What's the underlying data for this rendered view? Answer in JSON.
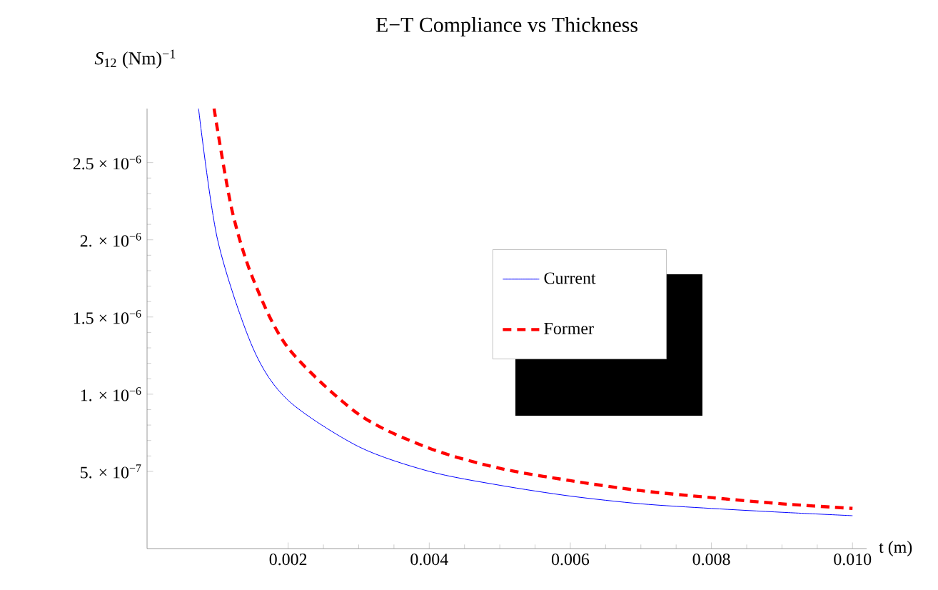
{
  "chart_data": {
    "type": "line",
    "title": "E−T Compliance vs Thickness",
    "xlabel": "t (m)",
    "ylabel": "*S*$_{12}$ (Nm)$^{−1}$",
    "xlim": [
      0,
      0.0102
    ],
    "ylim": [
      0,
      2.85e-06
    ],
    "xticks": [
      0.002,
      0.004,
      0.006,
      0.008,
      {
        "value": 0.01,
        "label": "0.010"
      }
    ],
    "yticks": [
      {
        "value": 5e-07,
        "label": "5. × 10$^{−7}$"
      },
      {
        "value": 1e-06,
        "label": "1. × 10$^{−6}$"
      },
      {
        "value": 1.5e-06,
        "label": "1.5 × 10$^{−6}$"
      },
      {
        "value": 2e-06,
        "label": "2. × 10$^{−6}$"
      },
      {
        "value": 2.5e-06,
        "label": "2.5 × 10$^{−6}$"
      }
    ],
    "legend": "right",
    "grid": false,
    "series": [
      {
        "name": "Current",
        "color": "#0000ff",
        "line_style": "solid",
        "x": [
          0.00073,
          0.001,
          0.0015,
          0.002,
          0.003,
          0.004,
          0.005,
          0.006,
          0.007,
          0.008,
          0.009,
          0.01
        ],
        "values": [
          2.85e-06,
          2e-06,
          1.3e-06,
          9.6e-07,
          6.6e-07,
          5e-07,
          4.1e-07,
          3.4e-07,
          2.9e-07,
          2.6e-07,
          2.35e-07,
          2.13e-07
        ]
      },
      {
        "name": "Former",
        "color": "#ff0000",
        "line_style": "dashed",
        "x": [
          0.00095,
          0.0012,
          0.0015,
          0.002,
          0.003,
          0.004,
          0.005,
          0.006,
          0.007,
          0.008,
          0.009,
          0.01
        ],
        "values": [
          2.85e-06,
          2.2e-06,
          1.75e-06,
          1.3e-06,
          8.7e-07,
          6.5e-07,
          5.2e-07,
          4.4e-07,
          3.75e-07,
          3.3e-07,
          2.9e-07,
          2.6e-07
        ]
      }
    ]
  }
}
